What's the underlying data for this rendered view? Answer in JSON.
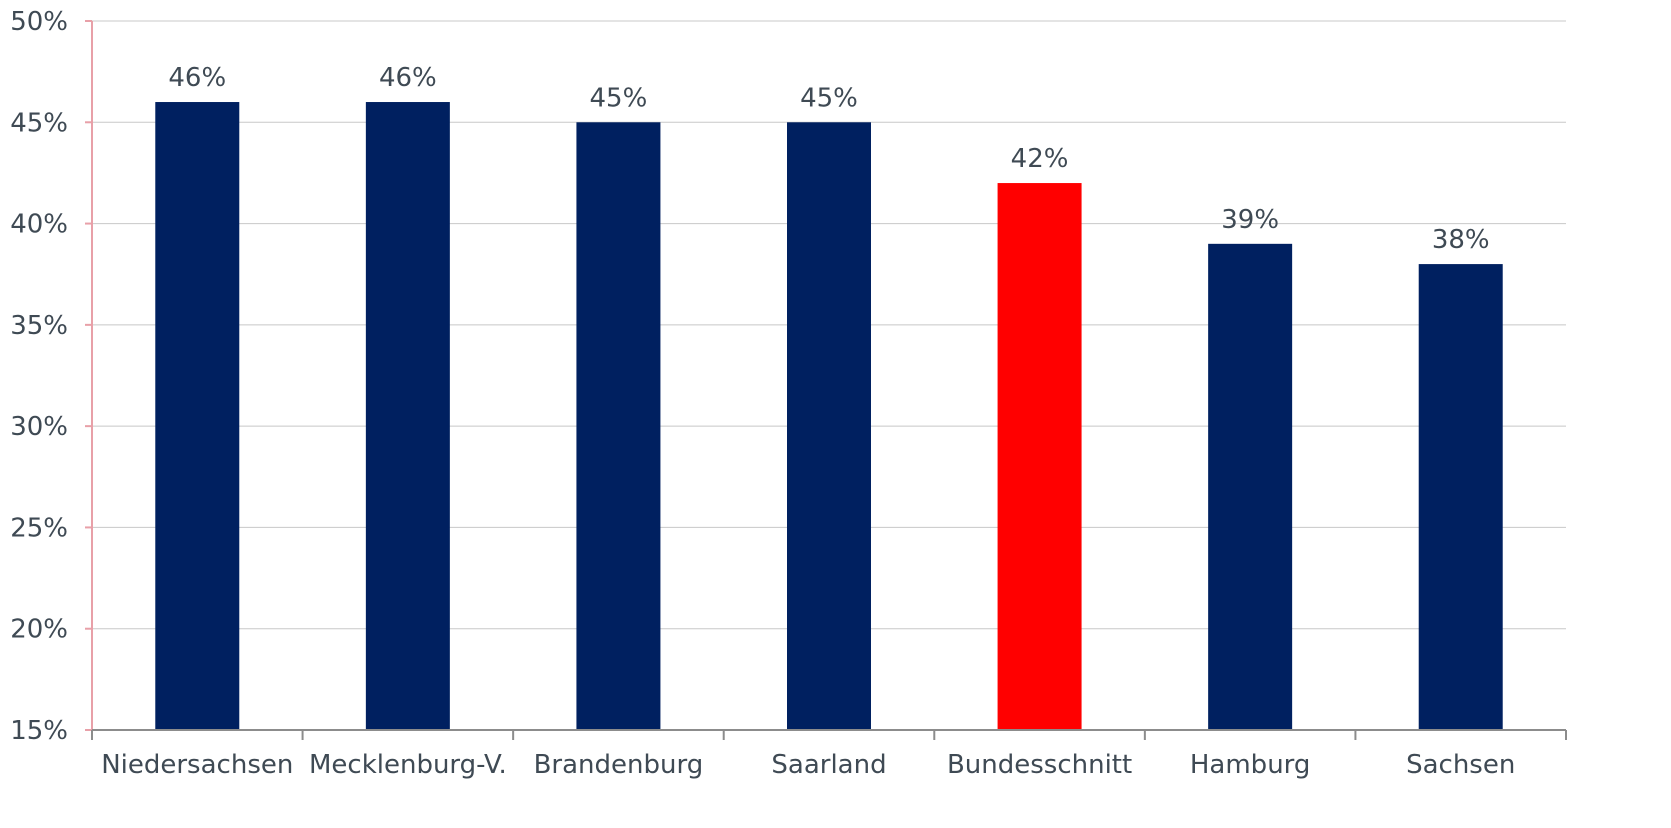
{
  "chart_data": {
    "type": "bar",
    "title": "",
    "xlabel": "",
    "ylabel": "",
    "categories": [
      "Niedersachsen",
      "Mecklenburg-V.",
      "Brandenburg",
      "Saarland",
      "Bundesschnitt",
      "Hamburg",
      "Sachsen"
    ],
    "values": [
      46,
      46,
      45,
      45,
      42,
      39,
      38
    ],
    "data_labels": [
      "46%",
      "46%",
      "45%",
      "45%",
      "42%",
      "39%",
      "38%"
    ],
    "highlight_category": "Bundesschnitt",
    "ylim": [
      15,
      50
    ],
    "yticks": [
      15,
      20,
      25,
      30,
      35,
      40,
      45,
      50
    ],
    "ytick_labels": [
      "15%",
      "20%",
      "25%",
      "30%",
      "35%",
      "40%",
      "45%",
      "50%"
    ],
    "grid": true,
    "legend": "none",
    "colors": {
      "bar": "#002060",
      "highlight": "#ff0000",
      "grid": "#c8c8c8",
      "y_axis": "#e8a0a8",
      "x_axis": "#8c8c8c",
      "text": "#3f4a54"
    }
  }
}
